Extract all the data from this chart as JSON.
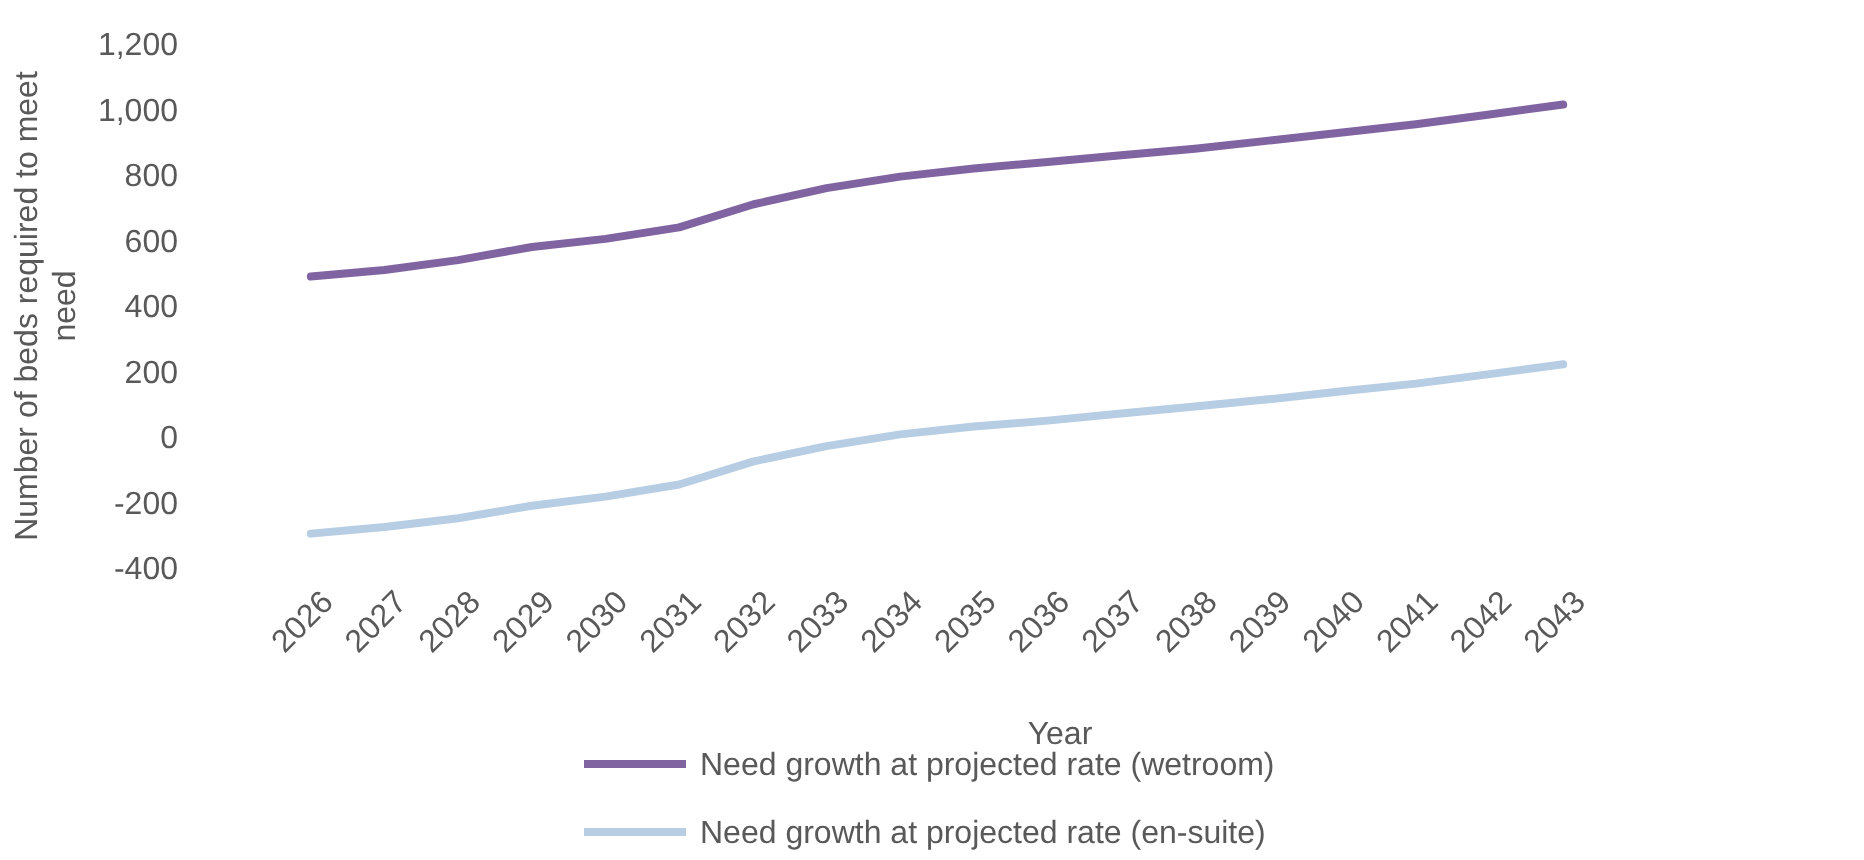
{
  "chart_data": {
    "type": "line",
    "xlabel": "Year",
    "ylabel": "Number of beds required to meet need",
    "categories": [
      "2026",
      "2027",
      "2028",
      "2029",
      "2030",
      "2031",
      "2032",
      "2033",
      "2034",
      "2035",
      "2036",
      "2037",
      "2038",
      "2039",
      "2040",
      "2041",
      "2042",
      "2043"
    ],
    "series": [
      {
        "name": "Need growth at projected rate (wetroom)",
        "color": "#8064a2",
        "values": [
          490,
          510,
          540,
          580,
          605,
          640,
          710,
          760,
          795,
          820,
          840,
          860,
          880,
          905,
          930,
          955,
          985,
          1015
        ]
      },
      {
        "name": "Need growth at projected rate (en-suite)",
        "color": "#b7cde3",
        "values": [
          -295,
          -275,
          -248,
          -210,
          -182,
          -145,
          -75,
          -28,
          8,
          32,
          50,
          72,
          93,
          115,
          140,
          163,
          192,
          222
        ]
      }
    ],
    "ylim": [
      -400,
      1200
    ],
    "yticks": [
      {
        "value": -400,
        "label": "-400"
      },
      {
        "value": -200,
        "label": "-200"
      },
      {
        "value": 0,
        "label": "0"
      },
      {
        "value": 200,
        "label": "200"
      },
      {
        "value": 400,
        "label": "400"
      },
      {
        "value": 600,
        "label": "600"
      },
      {
        "value": 800,
        "label": "800"
      },
      {
        "value": 1000,
        "label": "1,000"
      },
      {
        "value": 1200,
        "label": "1,200"
      }
    ],
    "grid": false,
    "legend": "bottom",
    "marker": "none",
    "line_style": "solid"
  }
}
